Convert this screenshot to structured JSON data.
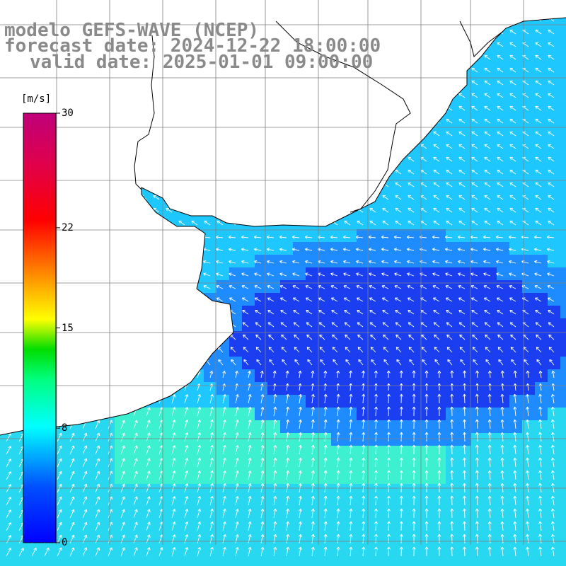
{
  "header": {
    "model": "modelo GEFS-WAVE (NCEP)",
    "forecast": "forecast date: 2024-12-22 18:00:00",
    "valid": "valid date: 2025-01-01 09:00:00"
  },
  "colorbar": {
    "unit": "[m/s]",
    "min": 0,
    "max": 30,
    "ticks": [
      {
        "value": 30,
        "label": "30"
      },
      {
        "value": 22,
        "label": "22"
      },
      {
        "value": 15,
        "label": "15"
      },
      {
        "value": 8,
        "label": "8"
      },
      {
        "value": 0,
        "label": "0"
      }
    ],
    "colors": [
      "#0000ff",
      "#0080ff",
      "#00ffff",
      "#00ff80",
      "#00ff00",
      "#ffff00",
      "#ff8000",
      "#ff0000",
      "#c00060",
      "#c00080"
    ]
  },
  "map": {
    "variable": "wind speed",
    "ocean_low_color": "#1a3ef0",
    "ocean_mid_color": "#1ec8ff",
    "ocean_high_color": "#3cf0d0",
    "land_color": "#ffffff",
    "coastline_color": "#000000",
    "gridline_color": "#808080",
    "arrow_color": "#ffffff"
  }
}
